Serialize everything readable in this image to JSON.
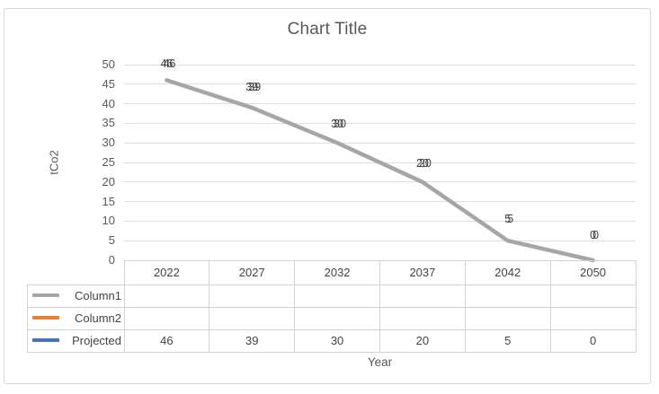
{
  "title": "Chart Title",
  "axes": {
    "y_title": "tCo2",
    "x_title": "Year",
    "y_ticks": [
      "0",
      "5",
      "10",
      "15",
      "20",
      "25",
      "30",
      "35",
      "40",
      "45",
      "50"
    ]
  },
  "chart_data": {
    "type": "line",
    "title": "Chart Title",
    "xlabel": "Year",
    "ylabel": "tCo2",
    "categories": [
      "2022",
      "2027",
      "2032",
      "2037",
      "2042",
      "2050"
    ],
    "series": [
      {
        "name": "Column1",
        "color": "#a5a5a5",
        "values": [
          null,
          null,
          null,
          null,
          null,
          null
        ]
      },
      {
        "name": "Column2",
        "color": "#ed7d31",
        "values": [
          null,
          null,
          null,
          null,
          null,
          null
        ]
      },
      {
        "name": "Projected",
        "color": "#4472c4",
        "values": [
          46,
          39,
          30,
          20,
          5,
          0
        ]
      }
    ],
    "plotted_line": {
      "color": "#a6a6a6",
      "values": [
        46,
        39,
        30,
        20,
        5,
        0
      ]
    },
    "data_labels": [
      "46",
      "39",
      "30",
      "20",
      "5",
      "0"
    ],
    "data_labels_doubled": true,
    "ylim": [
      0,
      50
    ],
    "ytick_step": 5,
    "grid": true,
    "legend_position": "data-table-left"
  },
  "table": {
    "columns": [
      "2022",
      "2027",
      "2032",
      "2037",
      "2042",
      "2050"
    ],
    "rows": [
      {
        "name": "Column1",
        "key_color": "#a5a5a5",
        "values": [
          "",
          "",
          "",
          "",
          "",
          ""
        ]
      },
      {
        "name": "Column2",
        "key_color": "#ed7d31",
        "values": [
          "",
          "",
          "",
          "",
          "",
          ""
        ]
      },
      {
        "name": "Projected",
        "key_color": "#4472c4",
        "values": [
          "46",
          "39",
          "30",
          "20",
          "5",
          "0"
        ]
      }
    ]
  },
  "colors": {
    "line": "#a6a6a6",
    "gridline": "#dedede",
    "table_border": "#d2d2d2",
    "tick_text": "#595959",
    "data_text": "#404040"
  }
}
